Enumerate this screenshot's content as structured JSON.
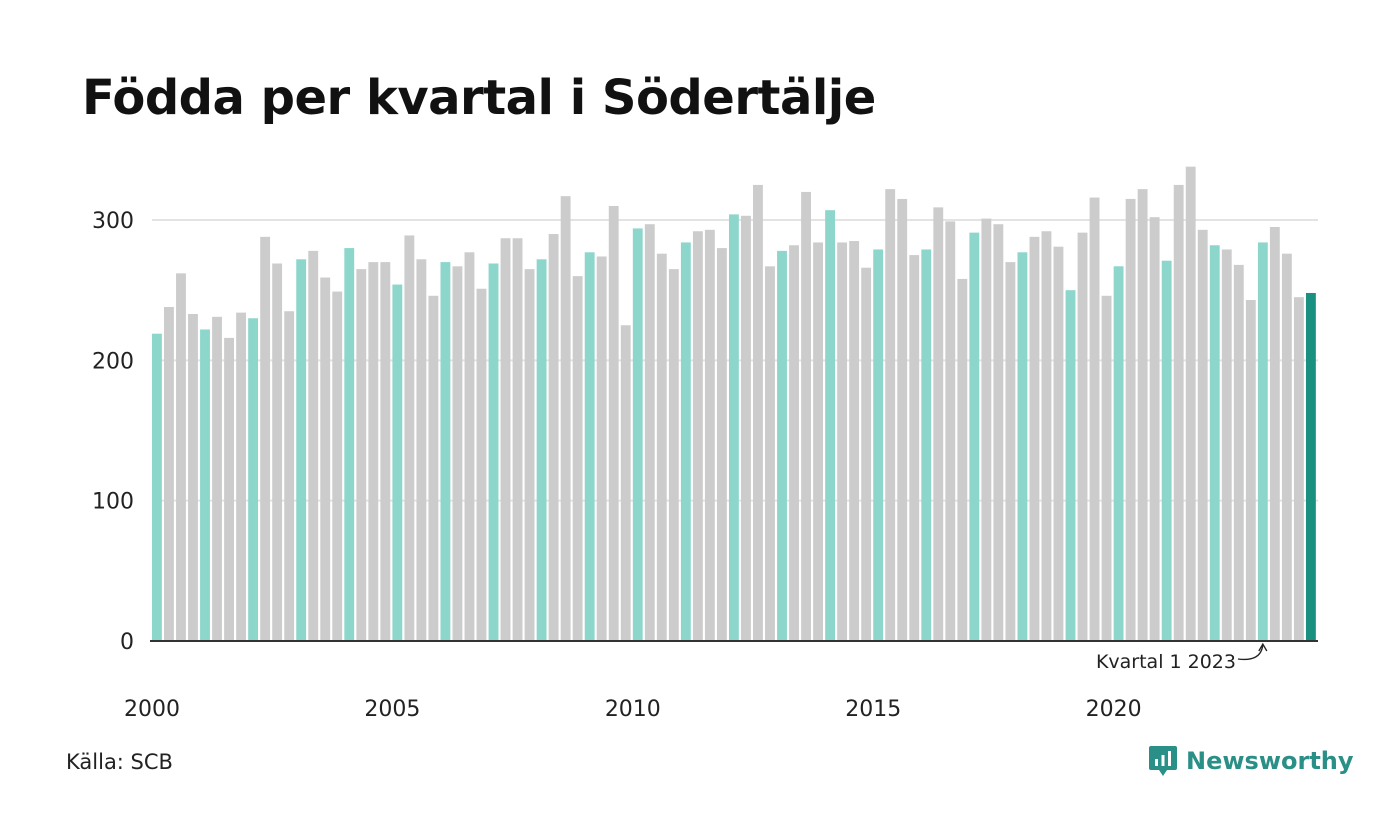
{
  "title": "Födda per kvartal i Södertälje",
  "source": "Källa: SCB",
  "brand": "Newsworthy",
  "colors": {
    "q1": "#8dd6cc",
    "other": "#cccccc",
    "latest": "#1a9080",
    "grid": "#e3e3e3",
    "axis": "#333333"
  },
  "chart_data": {
    "type": "bar",
    "title": "Födda per kvartal i Södertälje",
    "xlabel": "",
    "ylabel": "",
    "ylim": [
      0,
      350
    ],
    "yticks": [
      0,
      100,
      200,
      300
    ],
    "grid": true,
    "x_tick_labels": [
      "2000",
      "2005",
      "2010",
      "2015",
      "2020"
    ],
    "start_year": 2000,
    "annotation": {
      "text": "Kvartal 1 2023",
      "year": 2023,
      "quarter": 1
    },
    "values": [
      219,
      238,
      262,
      233,
      222,
      231,
      216,
      234,
      230,
      288,
      269,
      235,
      272,
      278,
      259,
      249,
      280,
      265,
      270,
      270,
      254,
      289,
      272,
      246,
      270,
      267,
      277,
      251,
      269,
      287,
      287,
      265,
      272,
      290,
      317,
      260,
      277,
      274,
      310,
      225,
      294,
      297,
      276,
      265,
      284,
      292,
      293,
      280,
      304,
      303,
      325,
      267,
      278,
      282,
      320,
      284,
      307,
      284,
      285,
      266,
      279,
      322,
      315,
      275,
      279,
      309,
      299,
      258,
      291,
      301,
      297,
      270,
      277,
      288,
      292,
      281,
      250,
      291,
      316,
      246,
      267,
      315,
      322,
      302,
      271,
      325,
      338,
      293,
      282,
      279,
      268,
      243,
      284,
      295,
      276,
      245,
      248
    ]
  }
}
